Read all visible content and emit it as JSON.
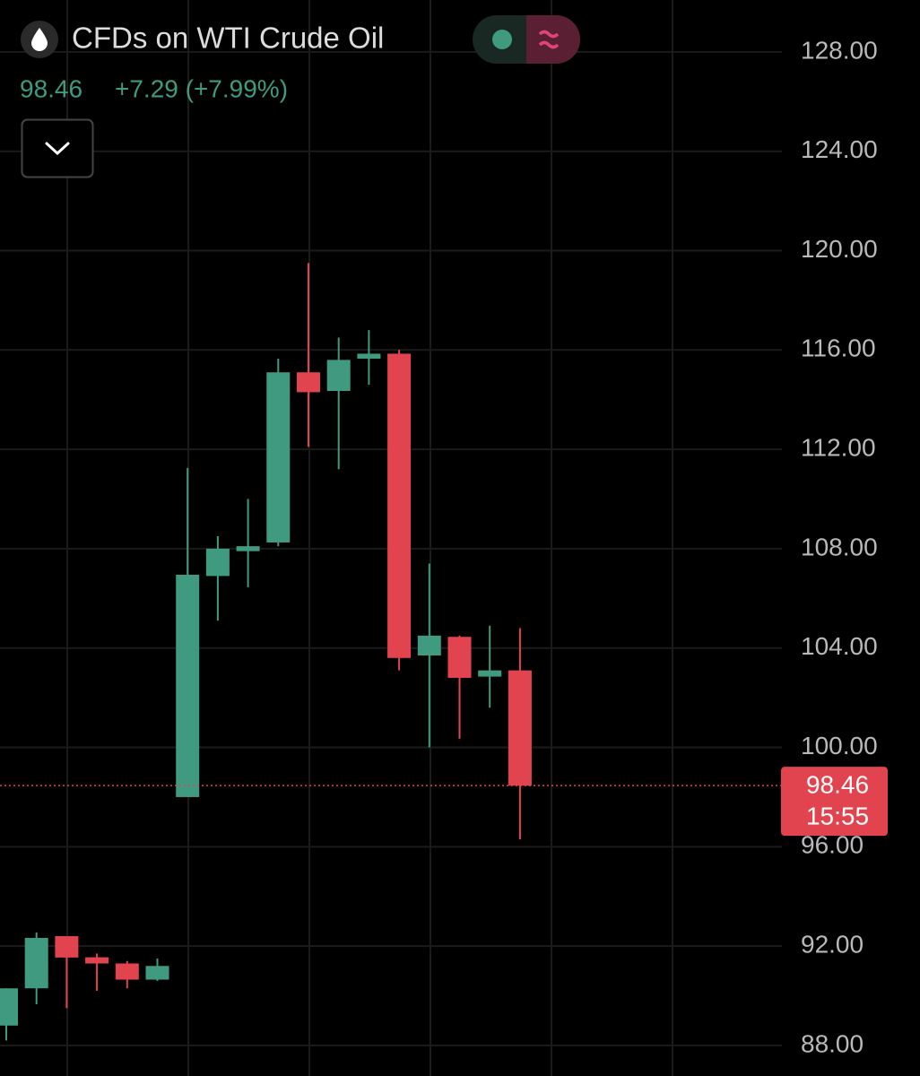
{
  "chart_data": {
    "type": "candlestick",
    "title": "CFDs on WTI Crude Oil",
    "last_price": 98.46,
    "change_text": "+7.29 (+7.99%)",
    "countdown": "15:55",
    "up_color": "#3f9a80",
    "down_color": "#e2444f",
    "categories": [
      null,
      null,
      null,
      null,
      null,
      null,
      null,
      null,
      null,
      null,
      null,
      null,
      null,
      null,
      null,
      null,
      null,
      null
    ],
    "open": [
      88.8,
      90.3,
      92.4,
      91.55,
      91.3,
      90.65,
      98.0,
      106.9,
      107.9,
      108.25,
      115.1,
      114.35,
      115.65,
      115.85,
      103.7,
      104.45,
      102.85,
      103.1
    ],
    "high": [
      90.3,
      92.55,
      92.4,
      91.7,
      91.4,
      91.5,
      111.25,
      108.5,
      110.0,
      115.65,
      119.5,
      116.5,
      116.8,
      116.0,
      107.4,
      104.5,
      104.9,
      104.8
    ],
    "low": [
      88.2,
      89.66,
      89.5,
      90.2,
      90.3,
      90.6,
      98.0,
      105.1,
      106.45,
      108.1,
      112.1,
      111.2,
      114.6,
      103.1,
      100.0,
      100.35,
      101.6,
      96.3
    ],
    "close": [
      90.3,
      92.33,
      91.54,
      91.3,
      90.65,
      91.2,
      106.95,
      108.0,
      108.1,
      115.1,
      114.3,
      115.6,
      115.85,
      103.6,
      104.5,
      102.8,
      103.1,
      98.46
    ],
    "ylim": [
      86.77,
      130.09
    ],
    "yticks": [
      {
        "value": 88,
        "label": "88.00"
      },
      {
        "value": 92,
        "label": "92.00"
      },
      {
        "value": 96,
        "label": "96.00"
      },
      {
        "value": 100,
        "label": "100.00"
      },
      {
        "value": 104,
        "label": "104.00"
      },
      {
        "value": 108,
        "label": "108.00"
      },
      {
        "value": 112,
        "label": "112.00"
      },
      {
        "value": 116,
        "label": "116.00"
      },
      {
        "value": 120,
        "label": "120.00"
      },
      {
        "value": 124,
        "label": "124.00"
      },
      {
        "value": 128,
        "label": "128.00"
      }
    ],
    "grid": true
  }
}
